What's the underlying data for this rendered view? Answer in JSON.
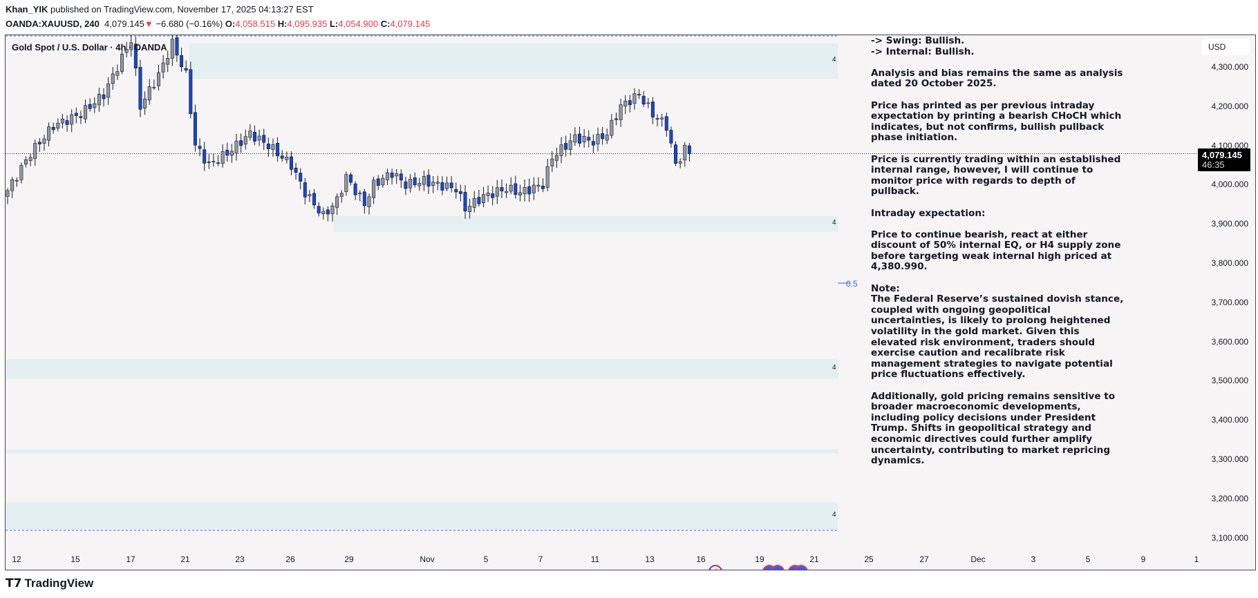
{
  "header": {
    "author": "Khan_YIK",
    "published": "published on TradingView.com, November 17, 2025 04:13:27 EST",
    "symbol": "OANDA:XAUUSD, 240",
    "last": "4,079.145",
    "change": "−6.680 (−0.16%)",
    "o_label": "O:",
    "o": "4,058.515",
    "h_label": "H:",
    "h": "4,095.935",
    "l_label": "L:",
    "l": "4,054.900",
    "c_label": "C:",
    "c": "4,079.145"
  },
  "legend": "Gold Spot / U.S. Dollar · 4h · OANDA",
  "price_scale": {
    "currency": "USD",
    "labels": [
      "4,300.000",
      "4,200.000",
      "4,100.000",
      "4,000.000",
      "3,900.000",
      "3,800.000",
      "3,700.000",
      "3,600.000",
      "3,500.000",
      "3,400.000",
      "3,300.000",
      "3,200.000",
      "3,100.000"
    ],
    "current_price": "4,079.145",
    "countdown": "46:35"
  },
  "time_axis": [
    "12",
    "15",
    "17",
    "21",
    "23",
    "26",
    "29",
    "Nov",
    "5",
    "7",
    "11",
    "13",
    "16",
    "19",
    "21",
    "25",
    "27",
    "Dec",
    "3",
    "5",
    "9",
    "1"
  ],
  "zone_label": "4",
  "fib_label": "0.5",
  "colors": {
    "up": "#b2b5be",
    "down": "#1848cc",
    "zone": "#e3eff1",
    "accent": "#2962ff",
    "red": "#f23645"
  },
  "chart_data": {
    "type": "candlestick",
    "ylim": [
      3070,
      4360
    ],
    "candle_count": 150,
    "price_path": [
      [
        0,
        3985
      ],
      [
        5,
        4080
      ],
      [
        10,
        4150
      ],
      [
        16,
        4180
      ],
      [
        21,
        4230
      ],
      [
        24,
        4300
      ],
      [
        27,
        4370
      ],
      [
        29,
        4200
      ],
      [
        33,
        4280
      ],
      [
        36,
        4360
      ],
      [
        39,
        4280
      ],
      [
        41,
        4100
      ],
      [
        44,
        4050
      ],
      [
        48,
        4080
      ],
      [
        53,
        4130
      ],
      [
        57,
        4100
      ],
      [
        62,
        4050
      ],
      [
        65,
        3980
      ],
      [
        69,
        3920
      ],
      [
        72,
        3960
      ],
      [
        74,
        4020
      ],
      [
        78,
        3950
      ],
      [
        80,
        4000
      ],
      [
        84,
        4030
      ],
      [
        87,
        4000
      ],
      [
        91,
        4010
      ],
      [
        94,
        4000
      ],
      [
        98,
        3990
      ],
      [
        100,
        3940
      ],
      [
        104,
        3970
      ],
      [
        109,
        3990
      ],
      [
        112,
        3980
      ],
      [
        117,
        4000
      ],
      [
        119,
        4070
      ],
      [
        124,
        4120
      ],
      [
        128,
        4110
      ],
      [
        131,
        4130
      ],
      [
        134,
        4200
      ],
      [
        138,
        4230
      ],
      [
        141,
        4180
      ],
      [
        144,
        4150
      ],
      [
        146,
        4050
      ],
      [
        148,
        4090
      ],
      [
        149,
        4079
      ]
    ],
    "zones": [
      [
        4270,
        4360
      ],
      [
        3880,
        3920
      ],
      [
        3505,
        3555
      ],
      [
        3315,
        3325
      ],
      [
        3120,
        3190
      ]
    ]
  },
  "note": [
    "-> Swing:  Bullish.\n-> Internal:  Bullish.",
    "Analysis and bias remains the same as analysis\ndated 20 October 2025.",
    "Price has printed as per previous intraday\nexpectation by printing a bearish CHoCH which\nindicates, but not confirms, bullish pullback\nphase initiation.",
    "Price is currently trading within an established\ninternal range, however, I will continue to\nmonitor price with regards to depth of\npullback.",
    "Intraday expectation:",
    "Price to continue bearish, react at either\ndiscount of 50% internal EQ, or H4 supply zone\nbefore targeting weak internal high priced at\n4,380.990.",
    "Note:\nThe Federal Reserve’s sustained dovish stance,\ncoupled with ongoing geopolitical\nuncertainties, is likely to prolong heightened\nvolatility in the gold market. Given this\nelevated risk environment, traders should\nexercise caution and recalibrate risk\nmanagement strategies to navigate potential\nprice fluctuations effectively.",
    "Additionally, gold pricing remains sensitive to\nbroader macroeconomic developments,\nincluding policy decisions under President\nTrump. Shifts in geopolitical strategy and\neconomic directives could further amplify\nuncertainty, contributing to market repricing\ndynamics."
  ],
  "brand": "TradingView"
}
